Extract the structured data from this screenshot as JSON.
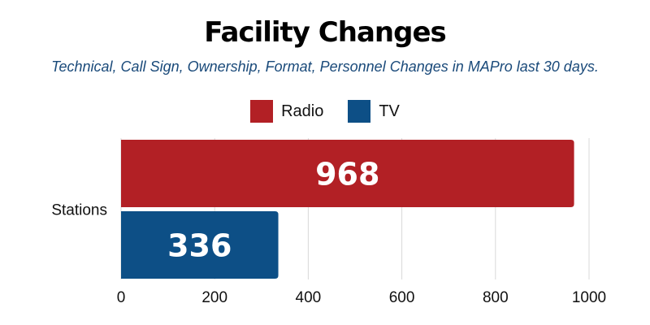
{
  "chart_data": {
    "type": "bar",
    "orientation": "horizontal",
    "title": "Facility Changes",
    "subtitle": "Technical, Call Sign, Ownership, Format, Personnel Changes in MAPro last 30 days.",
    "categories": [
      "Stations"
    ],
    "series": [
      {
        "name": "Radio",
        "values": [
          968
        ],
        "color": "#b22025"
      },
      {
        "name": "TV",
        "values": [
          336
        ],
        "color": "#0d4f86"
      }
    ],
    "xlim": [
      0,
      1000
    ],
    "xticks": [
      0,
      200,
      400,
      600,
      800,
      1000
    ],
    "xlabel": "",
    "ylabel": "",
    "grid": true,
    "legend_position": "top-center",
    "data_labels": true
  }
}
